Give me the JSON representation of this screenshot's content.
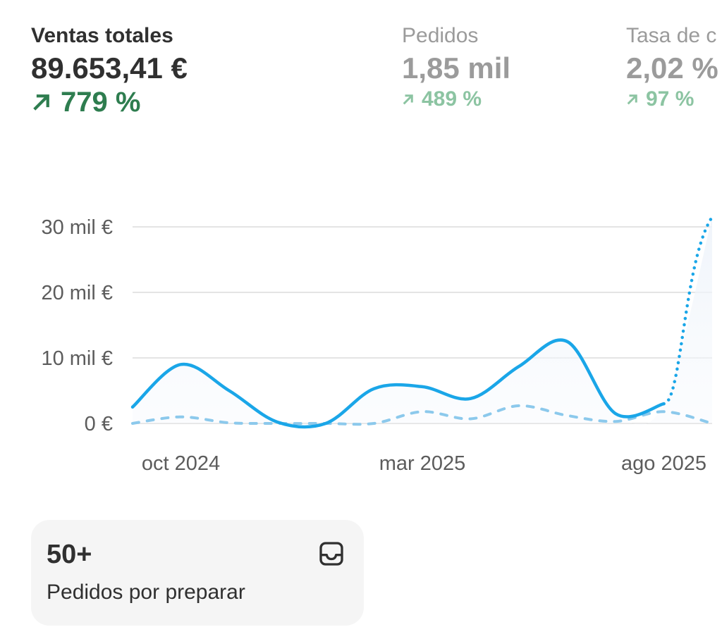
{
  "metrics": {
    "primary": {
      "label": "Ventas totales",
      "value": "89.653,41 €",
      "change": "779 %"
    },
    "orders": {
      "label": "Pedidos",
      "value": "1,85 mil",
      "change": "489 %"
    },
    "rate": {
      "label": "Tasa de c",
      "value": "2,02 %",
      "change": "97 %"
    }
  },
  "chart_data": {
    "type": "line",
    "x": [
      "sep 2024",
      "oct 2024",
      "nov 2024",
      "dic 2024",
      "ene 2025",
      "feb 2025",
      "mar 2025",
      "abr 2025",
      "may 2025",
      "jun 2025",
      "jul 2025",
      "ago 2025",
      "sep 2025"
    ],
    "x_tick_labels": [
      "oct 2024",
      "mar 2025",
      "ago 2025"
    ],
    "y_tick_labels": [
      "0 €",
      "10 mil €",
      "20 mil €",
      "30 mil €"
    ],
    "ylim": [
      0,
      30000
    ],
    "grid": true,
    "series": [
      {
        "role": "current period",
        "color": "#1aa6e8",
        "style": "solid",
        "values": [
          2500,
          9000,
          5000,
          200,
          0,
          5300,
          5600,
          3800,
          8700,
          12500,
          1500,
          3000,
          31500
        ],
        "last_segment_style": "dotted"
      },
      {
        "role": "previous period",
        "color": "#8cc9ec",
        "style": "dashed",
        "values": [
          0,
          1000,
          100,
          0,
          0,
          0,
          1800,
          700,
          2700,
          1200,
          300,
          1800,
          0
        ]
      }
    ]
  },
  "card": {
    "count": "50+",
    "label": "Pedidos por preparar",
    "icon": "inbox-icon"
  }
}
